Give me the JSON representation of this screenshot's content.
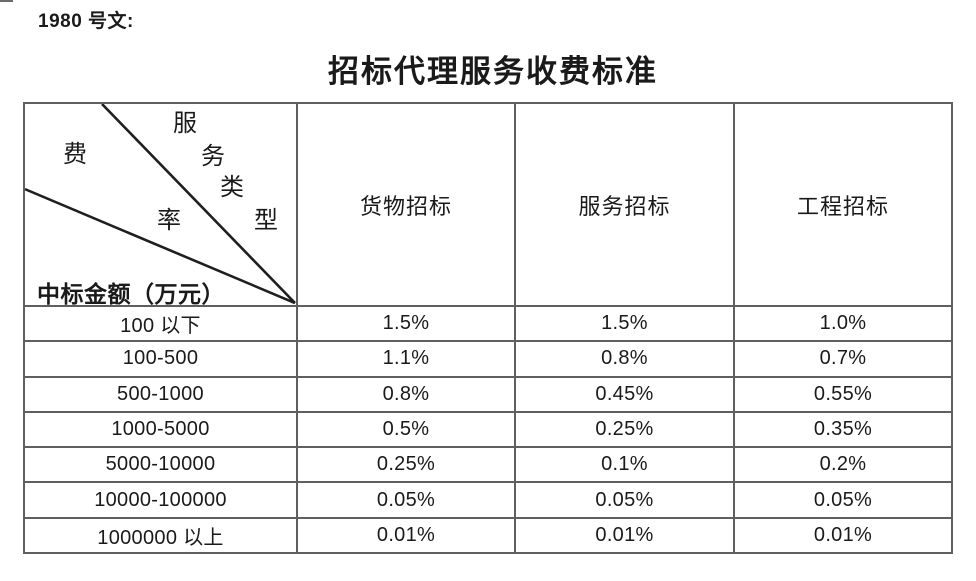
{
  "doc_label": "1980 号文:",
  "title": "招标代理服务收费标准",
  "table": {
    "diagonal": {
      "service_type_chars": [
        "服",
        "务",
        "类",
        "型"
      ],
      "fee_rate_chars": [
        "费",
        "率"
      ],
      "bottom_label": "中标金额（万元）"
    },
    "columns": [
      "货物招标",
      "服务招标",
      "工程招标"
    ],
    "rows": [
      {
        "range": "100 以下",
        "values": [
          "1.5%",
          "1.5%",
          "1.0%"
        ]
      },
      {
        "range": "100-500",
        "values": [
          "1.1%",
          "0.8%",
          "0.7%"
        ]
      },
      {
        "range": "500-1000",
        "values": [
          "0.8%",
          "0.45%",
          "0.55%"
        ]
      },
      {
        "range": "1000-5000",
        "values": [
          "0.5%",
          "0.25%",
          "0.35%"
        ]
      },
      {
        "range": "5000-10000",
        "values": [
          "0.25%",
          "0.1%",
          "0.2%"
        ]
      },
      {
        "range": "10000-100000",
        "values": [
          "0.05%",
          "0.05%",
          "0.05%"
        ]
      },
      {
        "range": "1000000 以上",
        "values": [
          "0.01%",
          "0.01%",
          "0.01%"
        ]
      }
    ]
  },
  "colors": {
    "text": "#1a1a1a",
    "table_border": "#5f5f5f",
    "diagonal_line": "#1f1f1f",
    "background": "#ffffff"
  }
}
